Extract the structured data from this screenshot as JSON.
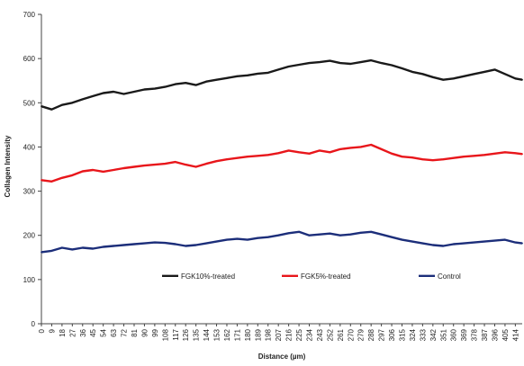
{
  "chart_data": {
    "type": "line",
    "title": "",
    "xlabel": "Distance (µm)",
    "ylabel": "Collagen Intensity",
    "ylim": [
      0,
      700
    ],
    "y_ticks": [
      0,
      100,
      200,
      300,
      400,
      500,
      600,
      700
    ],
    "xlim": [
      0,
      420
    ],
    "x_ticks": [
      0,
      9,
      18,
      27,
      36,
      45,
      54,
      63,
      72,
      81,
      90,
      99,
      108,
      117,
      126,
      135,
      144,
      153,
      162,
      171,
      180,
      189,
      198,
      207,
      216,
      225,
      234,
      243,
      252,
      261,
      270,
      279,
      288,
      297,
      306,
      315,
      324,
      333,
      342,
      351,
      360,
      369,
      378,
      387,
      396,
      405,
      414
    ],
    "grid": false,
    "legend_position": "inside-bottom",
    "series": [
      {
        "name": "FGK10%-treated",
        "color": "#1a1a1a",
        "x": [
          0,
          9,
          18,
          27,
          36,
          45,
          54,
          63,
          72,
          81,
          90,
          99,
          108,
          117,
          126,
          135,
          144,
          153,
          162,
          171,
          180,
          189,
          198,
          207,
          216,
          225,
          234,
          243,
          252,
          261,
          270,
          279,
          288,
          297,
          306,
          315,
          324,
          333,
          342,
          351,
          360,
          369,
          378,
          387,
          396,
          405,
          414,
          420
        ],
        "values": [
          492,
          485,
          495,
          500,
          508,
          515,
          522,
          525,
          520,
          525,
          530,
          532,
          536,
          542,
          545,
          540,
          548,
          552,
          556,
          560,
          562,
          566,
          568,
          575,
          582,
          586,
          590,
          592,
          595,
          590,
          588,
          592,
          596,
          590,
          585,
          578,
          570,
          565,
          558,
          552,
          555,
          560,
          565,
          570,
          575,
          565,
          555,
          552
        ]
      },
      {
        "name": "FGK5%-treated",
        "color": "#e8161b",
        "x": [
          0,
          9,
          18,
          27,
          36,
          45,
          54,
          63,
          72,
          81,
          90,
          99,
          108,
          117,
          126,
          135,
          144,
          153,
          162,
          171,
          180,
          189,
          198,
          207,
          216,
          225,
          234,
          243,
          252,
          261,
          270,
          279,
          288,
          297,
          306,
          315,
          324,
          333,
          342,
          351,
          360,
          369,
          378,
          387,
          396,
          405,
          414,
          420
        ],
        "values": [
          325,
          322,
          330,
          336,
          345,
          348,
          344,
          348,
          352,
          355,
          358,
          360,
          362,
          366,
          360,
          355,
          362,
          368,
          372,
          375,
          378,
          380,
          382,
          386,
          392,
          388,
          385,
          392,
          388,
          395,
          398,
          400,
          405,
          395,
          385,
          378,
          376,
          372,
          370,
          372,
          375,
          378,
          380,
          382,
          385,
          388,
          386,
          384
        ]
      },
      {
        "name": "Control",
        "color": "#1c2e7a",
        "x": [
          0,
          9,
          18,
          27,
          36,
          45,
          54,
          63,
          72,
          81,
          90,
          99,
          108,
          117,
          126,
          135,
          144,
          153,
          162,
          171,
          180,
          189,
          198,
          207,
          216,
          225,
          234,
          243,
          252,
          261,
          270,
          279,
          288,
          297,
          306,
          315,
          324,
          333,
          342,
          351,
          360,
          369,
          378,
          387,
          396,
          405,
          414,
          420
        ],
        "values": [
          162,
          165,
          172,
          168,
          172,
          170,
          174,
          176,
          178,
          180,
          182,
          184,
          183,
          180,
          176,
          178,
          182,
          186,
          190,
          192,
          190,
          194,
          196,
          200,
          205,
          208,
          200,
          202,
          204,
          200,
          202,
          206,
          208,
          202,
          196,
          190,
          186,
          182,
          178,
          176,
          180,
          182,
          184,
          186,
          188,
          190,
          184,
          182
        ]
      }
    ]
  }
}
